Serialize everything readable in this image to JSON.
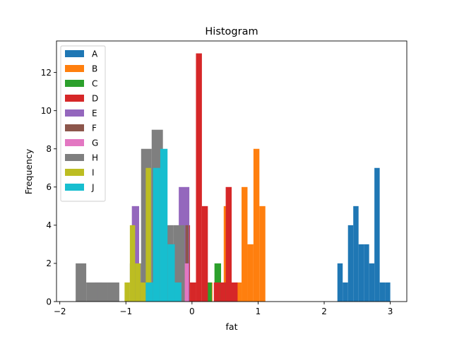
{
  "chart_data": {
    "type": "histogram",
    "title": "Histogram",
    "xlabel": "fat",
    "ylabel": "Frequency",
    "xlim": [
      -2.05,
      3.25
    ],
    "ylim": [
      0,
      13.65
    ],
    "xticks": [
      -2,
      -1,
      0,
      1,
      2,
      3
    ],
    "yticks": [
      0,
      2,
      4,
      6,
      8,
      10,
      12
    ],
    "legend_position": "top-left",
    "grid": false,
    "series": [
      {
        "name": "A",
        "color": "#1f77b4",
        "bins": [
          [
            2.2,
            2.28,
            2
          ],
          [
            2.28,
            2.36,
            1
          ],
          [
            2.36,
            2.44,
            4
          ],
          [
            2.44,
            2.52,
            5
          ],
          [
            2.52,
            2.6,
            3
          ],
          [
            2.6,
            2.68,
            3
          ],
          [
            2.68,
            2.76,
            2
          ],
          [
            2.76,
            2.84,
            7
          ],
          [
            2.84,
            2.92,
            1
          ],
          [
            2.92,
            3.0,
            1
          ]
        ]
      },
      {
        "name": "B",
        "color": "#ff7f0e",
        "bins": [
          [
            0.22,
            0.31,
            1
          ],
          [
            0.48,
            0.57,
            5
          ],
          [
            0.66,
            0.75,
            1
          ],
          [
            0.75,
            0.84,
            6
          ],
          [
            0.84,
            0.93,
            3
          ],
          [
            0.93,
            1.02,
            8
          ],
          [
            1.02,
            1.11,
            5
          ]
        ]
      },
      {
        "name": "C",
        "color": "#2ca02c",
        "bins": [
          [
            0.22,
            0.3,
            1
          ],
          [
            0.34,
            0.44,
            2
          ],
          [
            0.44,
            0.54,
            1
          ]
        ]
      },
      {
        "name": "D",
        "color": "#d62728",
        "bins": [
          [
            -0.12,
            -0.03,
            4
          ],
          [
            -0.03,
            0.06,
            1
          ],
          [
            0.06,
            0.15,
            13
          ],
          [
            0.15,
            0.24,
            5
          ],
          [
            0.33,
            0.42,
            1
          ],
          [
            0.42,
            0.51,
            1
          ],
          [
            0.51,
            0.6,
            6
          ],
          [
            0.6,
            0.69,
            1
          ]
        ]
      },
      {
        "name": "E",
        "color": "#9467bd",
        "bins": [
          [
            -1.47,
            -1.36,
            1
          ],
          [
            -0.91,
            -0.8,
            5
          ],
          [
            -0.2,
            -0.04,
            6
          ]
        ]
      },
      {
        "name": "F",
        "color": "#8c564b",
        "bins": [
          [
            -0.1,
            -0.05,
            4
          ]
        ]
      },
      {
        "name": "G",
        "color": "#e377c2",
        "bins": [
          [
            -0.12,
            -0.05,
            2
          ]
        ]
      },
      {
        "name": "H",
        "color": "#7f7f7f",
        "bins": [
          [
            -1.76,
            -1.6,
            2
          ],
          [
            -1.6,
            -1.43,
            1
          ],
          [
            -1.43,
            -1.27,
            1
          ],
          [
            -1.27,
            -1.1,
            1
          ],
          [
            -0.94,
            -0.77,
            2
          ],
          [
            -0.77,
            -0.61,
            8
          ],
          [
            -0.61,
            -0.44,
            9
          ],
          [
            -0.44,
            -0.28,
            4
          ],
          [
            -0.28,
            -0.11,
            4
          ]
        ]
      },
      {
        "name": "I",
        "color": "#bcbd22",
        "bins": [
          [
            -1.02,
            -0.94,
            1
          ],
          [
            -0.94,
            -0.86,
            4
          ],
          [
            -0.86,
            -0.78,
            2
          ],
          [
            -0.78,
            -0.7,
            1
          ],
          [
            -0.7,
            -0.62,
            7
          ]
        ]
      },
      {
        "name": "J",
        "color": "#17becf",
        "bins": [
          [
            -0.7,
            -0.59,
            1
          ],
          [
            -0.59,
            -0.48,
            7
          ],
          [
            -0.48,
            -0.37,
            8
          ],
          [
            -0.37,
            -0.26,
            3
          ],
          [
            -0.26,
            -0.16,
            1
          ]
        ]
      }
    ]
  }
}
